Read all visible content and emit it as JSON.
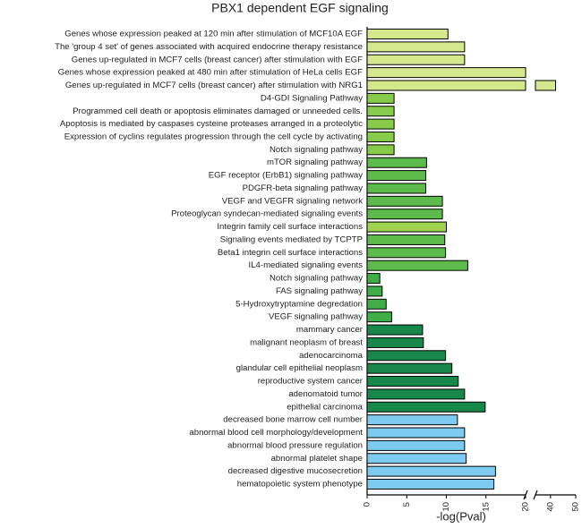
{
  "chart_data": {
    "type": "bar",
    "orientation": "horizontal",
    "title": "PBX1 dependent EGF signaling",
    "x_label": "-log(Pval)",
    "categories": [
      "Genes whose expression peaked at 120 min after stimulation of MCF10A EGF",
      "The 'group 4 set' of genes associated with acquired endocrine therapy resistance",
      "Genes up-regulated in MCF7 cells (breast cancer) after stimulation with EGF",
      "Genes whose expression peaked at 480 min after stimulation of HeLa cells EGF",
      "Genes up-regulated in MCF7 cells (breast cancer) after stimulation with NRG1",
      "D4-GDI Signaling Pathway",
      "Programmed cell death or apoptosis eliminates damaged or unneeded cells.",
      "Apoptosis is mediated by caspases cysteine proteases arranged in a proteolytic",
      "Expression of cyclins regulates progression through the cell cycle by activating",
      "Notch signaling pathway",
      "mTOR signaling pathway",
      "EGF receptor (ErbB1) signaling pathway",
      "PDGFR-beta signaling pathway",
      "VEGF and VEGFR signaling network",
      "Proteoglycan syndecan-mediated signaling events",
      "Integrin family cell surface interactions",
      "Signaling events mediated by TCPTP",
      "Beta1 integrin cell surface interactions",
      "IL4-mediated signaling events",
      "Notch signaling pathway",
      "FAS signaling pathway",
      "5-Hydroxytryptamine degredation",
      "VEGF signaling pathway",
      "mammary cancer",
      "malignant neoplasm of breast",
      "adenocarcinoma",
      "glandular cell epithelial neoplasm",
      "reproductive system cancer",
      "adenomatoid tumor",
      "epithelial carcinoma",
      "decreased bone marrow cell number",
      "abnormal blood cell morphology/development",
      "abnormal blood pressure regulation",
      "abnormal platelet shape",
      "decreased digestive mucosecretion",
      "hematopoietic system phenotype"
    ],
    "values": [
      10.2,
      12.3,
      12.3,
      20,
      42,
      3.4,
      3.4,
      3.4,
      3.4,
      3.4,
      7.5,
      7.4,
      7.4,
      9.5,
      9.5,
      10,
      9.8,
      9.9,
      12.7,
      1.6,
      1.9,
      2.4,
      3.1,
      7,
      7.1,
      9.9,
      10.7,
      11.5,
      12.3,
      14.9,
      11.4,
      12.3,
      12.3,
      12.5,
      16.2,
      16
    ],
    "colors": [
      "#d6e88c",
      "#d6e88c",
      "#d6e88c",
      "#d6e88c",
      "#d6e88c",
      "#86cc4a",
      "#86cc4a",
      "#86cc4a",
      "#86cc4a",
      "#86cc4a",
      "#5cbb4a",
      "#5cbb4a",
      "#5cbb4a",
      "#5cbb4a",
      "#5cbb4a",
      "#9ed34e",
      "#5cbb4a",
      "#5cbb4a",
      "#5cbb4a",
      "#3fae49",
      "#3fae49",
      "#3fae49",
      "#3fae49",
      "#17874a",
      "#17874a",
      "#17874a",
      "#17874a",
      "#17874a",
      "#17874a",
      "#17874a",
      "#7ecbf2",
      "#7ecbf2",
      "#7ecbf2",
      "#7ecbf2",
      "#7ecbf2",
      "#7ecbf2"
    ],
    "xlim": [
      0,
      20
    ],
    "xticks": [
      0,
      5,
      10,
      15,
      20
    ],
    "x2lim": [
      34,
      50
    ],
    "x2ticks": [
      40,
      50
    ]
  }
}
